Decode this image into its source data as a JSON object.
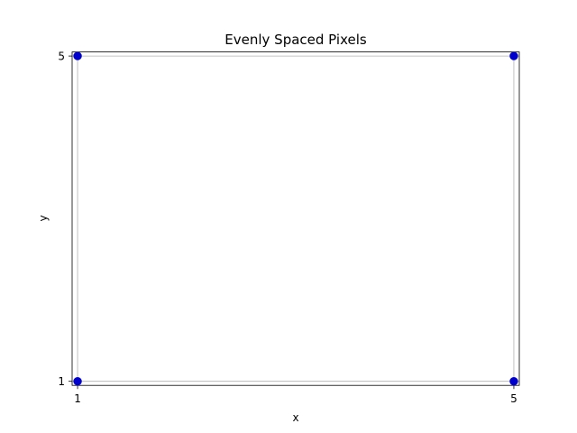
{
  "chart_data": {
    "type": "scatter",
    "title": "Evenly Spaced Pixels",
    "xlabel": "x",
    "ylabel": "y",
    "xlim": [
      0.95,
      5.05
    ],
    "ylim": [
      0.95,
      5.05
    ],
    "xticks": [
      1,
      5
    ],
    "yticks": [
      1,
      5
    ],
    "grid": true,
    "points": [
      {
        "x": 1,
        "y": 1
      },
      {
        "x": 1,
        "y": 5
      },
      {
        "x": 5,
        "y": 1
      },
      {
        "x": 5,
        "y": 5
      }
    ],
    "point_color": "#0000cc"
  }
}
